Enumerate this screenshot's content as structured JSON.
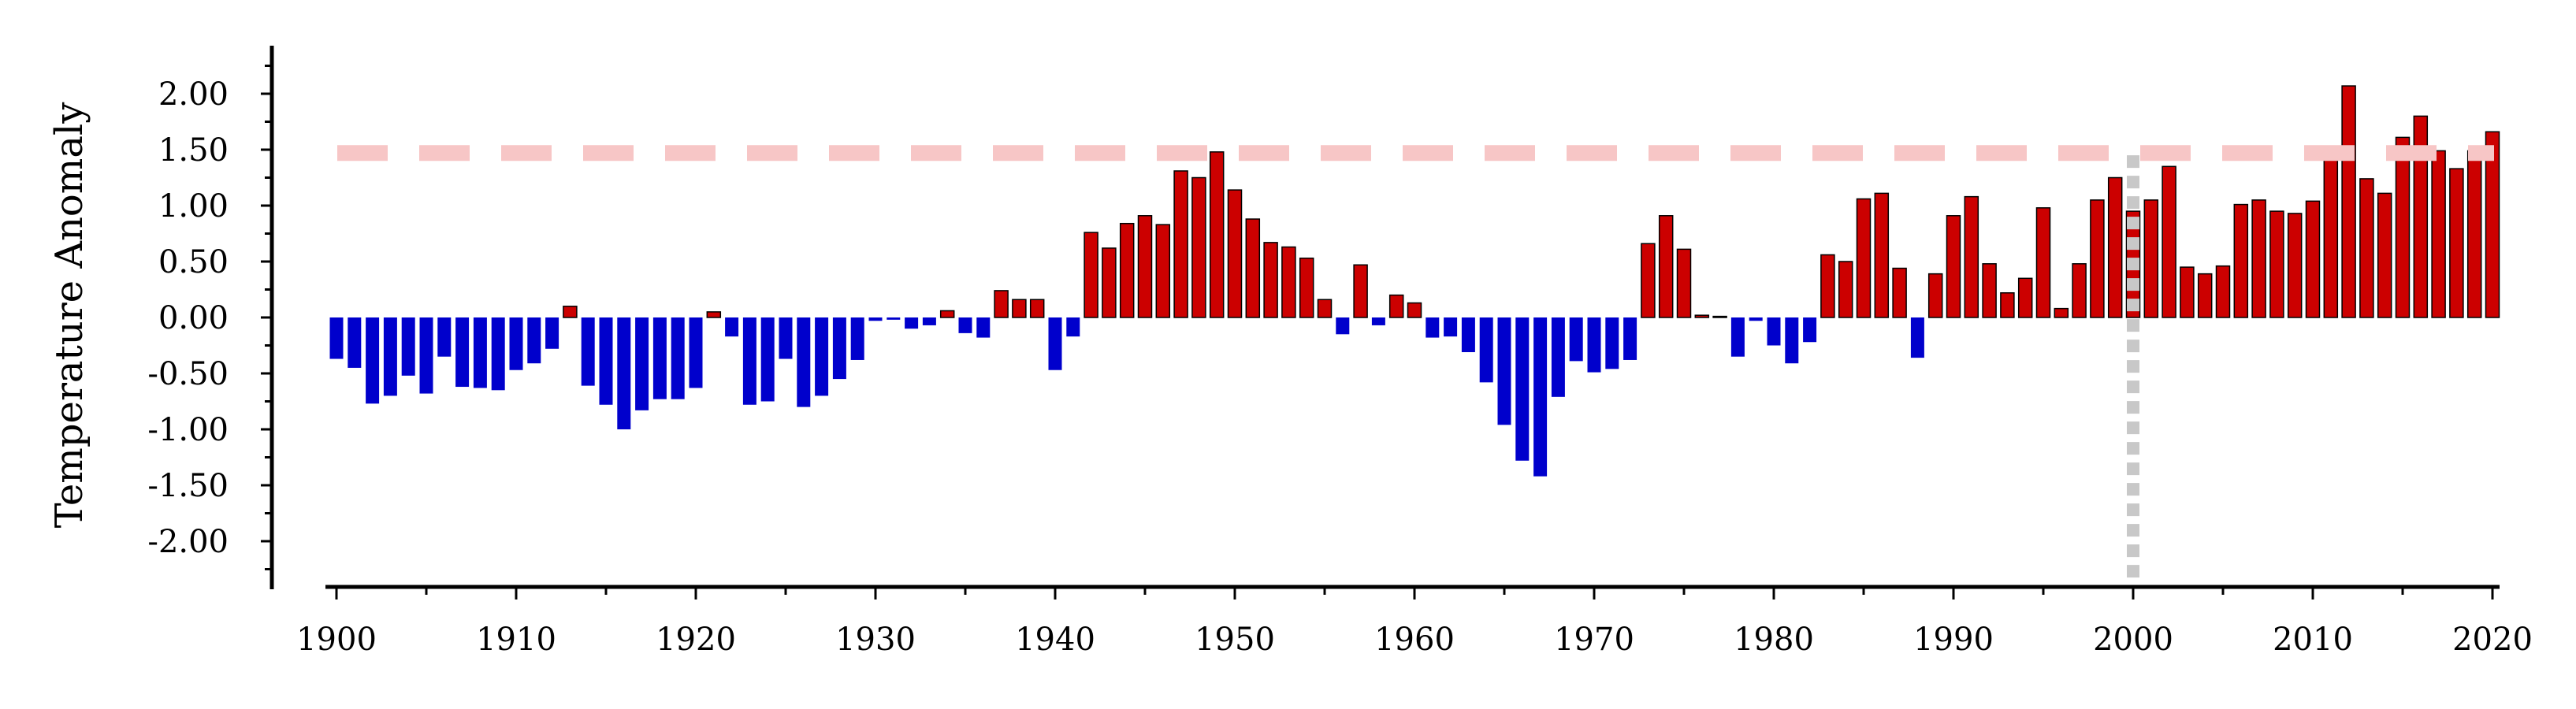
{
  "chart_data": {
    "type": "bar",
    "ylabel": "Temperature Anomaly",
    "xlabel": "",
    "x": [
      1900,
      1901,
      1902,
      1903,
      1904,
      1905,
      1906,
      1907,
      1908,
      1909,
      1910,
      1911,
      1912,
      1913,
      1914,
      1915,
      1916,
      1917,
      1918,
      1919,
      1920,
      1921,
      1922,
      1923,
      1924,
      1925,
      1926,
      1927,
      1928,
      1929,
      1930,
      1931,
      1932,
      1933,
      1934,
      1935,
      1936,
      1937,
      1938,
      1939,
      1940,
      1941,
      1942,
      1943,
      1944,
      1945,
      1946,
      1947,
      1948,
      1949,
      1950,
      1951,
      1952,
      1953,
      1954,
      1955,
      1956,
      1957,
      1958,
      1959,
      1960,
      1961,
      1962,
      1963,
      1964,
      1965,
      1966,
      1967,
      1968,
      1969,
      1970,
      1971,
      1972,
      1973,
      1974,
      1975,
      1976,
      1977,
      1978,
      1979,
      1980,
      1981,
      1982,
      1983,
      1984,
      1985,
      1986,
      1987,
      1988,
      1989,
      1990,
      1991,
      1992,
      1993,
      1994,
      1995,
      1996,
      1997,
      1998,
      1999,
      2000,
      2001,
      2002,
      2003,
      2004,
      2005,
      2006,
      2007,
      2008,
      2009,
      2010,
      2011,
      2012,
      2013,
      2014,
      2015,
      2016,
      2017,
      2018,
      2019,
      2020
    ],
    "values": [
      -0.37,
      -0.45,
      -0.77,
      -0.7,
      -0.52,
      -0.68,
      -0.35,
      -0.62,
      -0.63,
      -0.65,
      -0.47,
      -0.41,
      -0.28,
      0.1,
      -0.61,
      -0.78,
      -1.0,
      -0.83,
      -0.73,
      -0.73,
      -0.63,
      0.05,
      -0.17,
      -0.78,
      -0.75,
      -0.37,
      -0.8,
      -0.7,
      -0.55,
      -0.38,
      -0.03,
      -0.02,
      -0.1,
      -0.07,
      0.06,
      -0.14,
      -0.18,
      0.24,
      0.16,
      0.16,
      -0.47,
      -0.17,
      0.76,
      0.62,
      0.84,
      0.91,
      0.83,
      1.31,
      1.25,
      1.48,
      1.14,
      0.88,
      0.67,
      0.63,
      0.53,
      0.16,
      -0.15,
      0.47,
      -0.07,
      0.2,
      0.13,
      -0.18,
      -0.17,
      -0.31,
      -0.58,
      -0.96,
      -1.28,
      -1.42,
      -0.71,
      -0.39,
      -0.49,
      -0.46,
      -0.38,
      0.66,
      0.91,
      0.61,
      0.02,
      0.01,
      -0.35,
      -0.03,
      -0.25,
      -0.41,
      -0.22,
      0.56,
      0.5,
      1.06,
      1.11,
      0.44,
      -0.36,
      0.39,
      0.91,
      1.08,
      0.48,
      0.22,
      0.35,
      0.98,
      0.08,
      0.48,
      1.05,
      1.25,
      0.95,
      1.05,
      1.35,
      0.45,
      0.39,
      0.46,
      1.01,
      1.05,
      0.95,
      0.93,
      1.04,
      1.46,
      2.07,
      1.24,
      1.11,
      1.61,
      1.8,
      1.49,
      1.33,
      1.49,
      1.66
    ],
    "ylim": [
      -2.45,
      2.45
    ],
    "yticks": [
      "-2.00",
      "-1.50",
      "-1.00",
      "-0.50",
      "0.00",
      "0.50",
      "1.00",
      "1.50",
      "2.00"
    ],
    "xticks": [
      "1900",
      "1910",
      "1920",
      "1930",
      "1940",
      "1950",
      "1960",
      "1970",
      "1980",
      "1990",
      "2000",
      "2010",
      "2020"
    ],
    "threshold_line": 1.47,
    "reference_year": 2000,
    "colors": {
      "positive": "#cc0000",
      "negative": "#0000cc",
      "threshold": "#f7c6c6",
      "reference": "#c8c8c8",
      "axis": "#000000"
    },
    "grid": false,
    "legend": "none"
  }
}
